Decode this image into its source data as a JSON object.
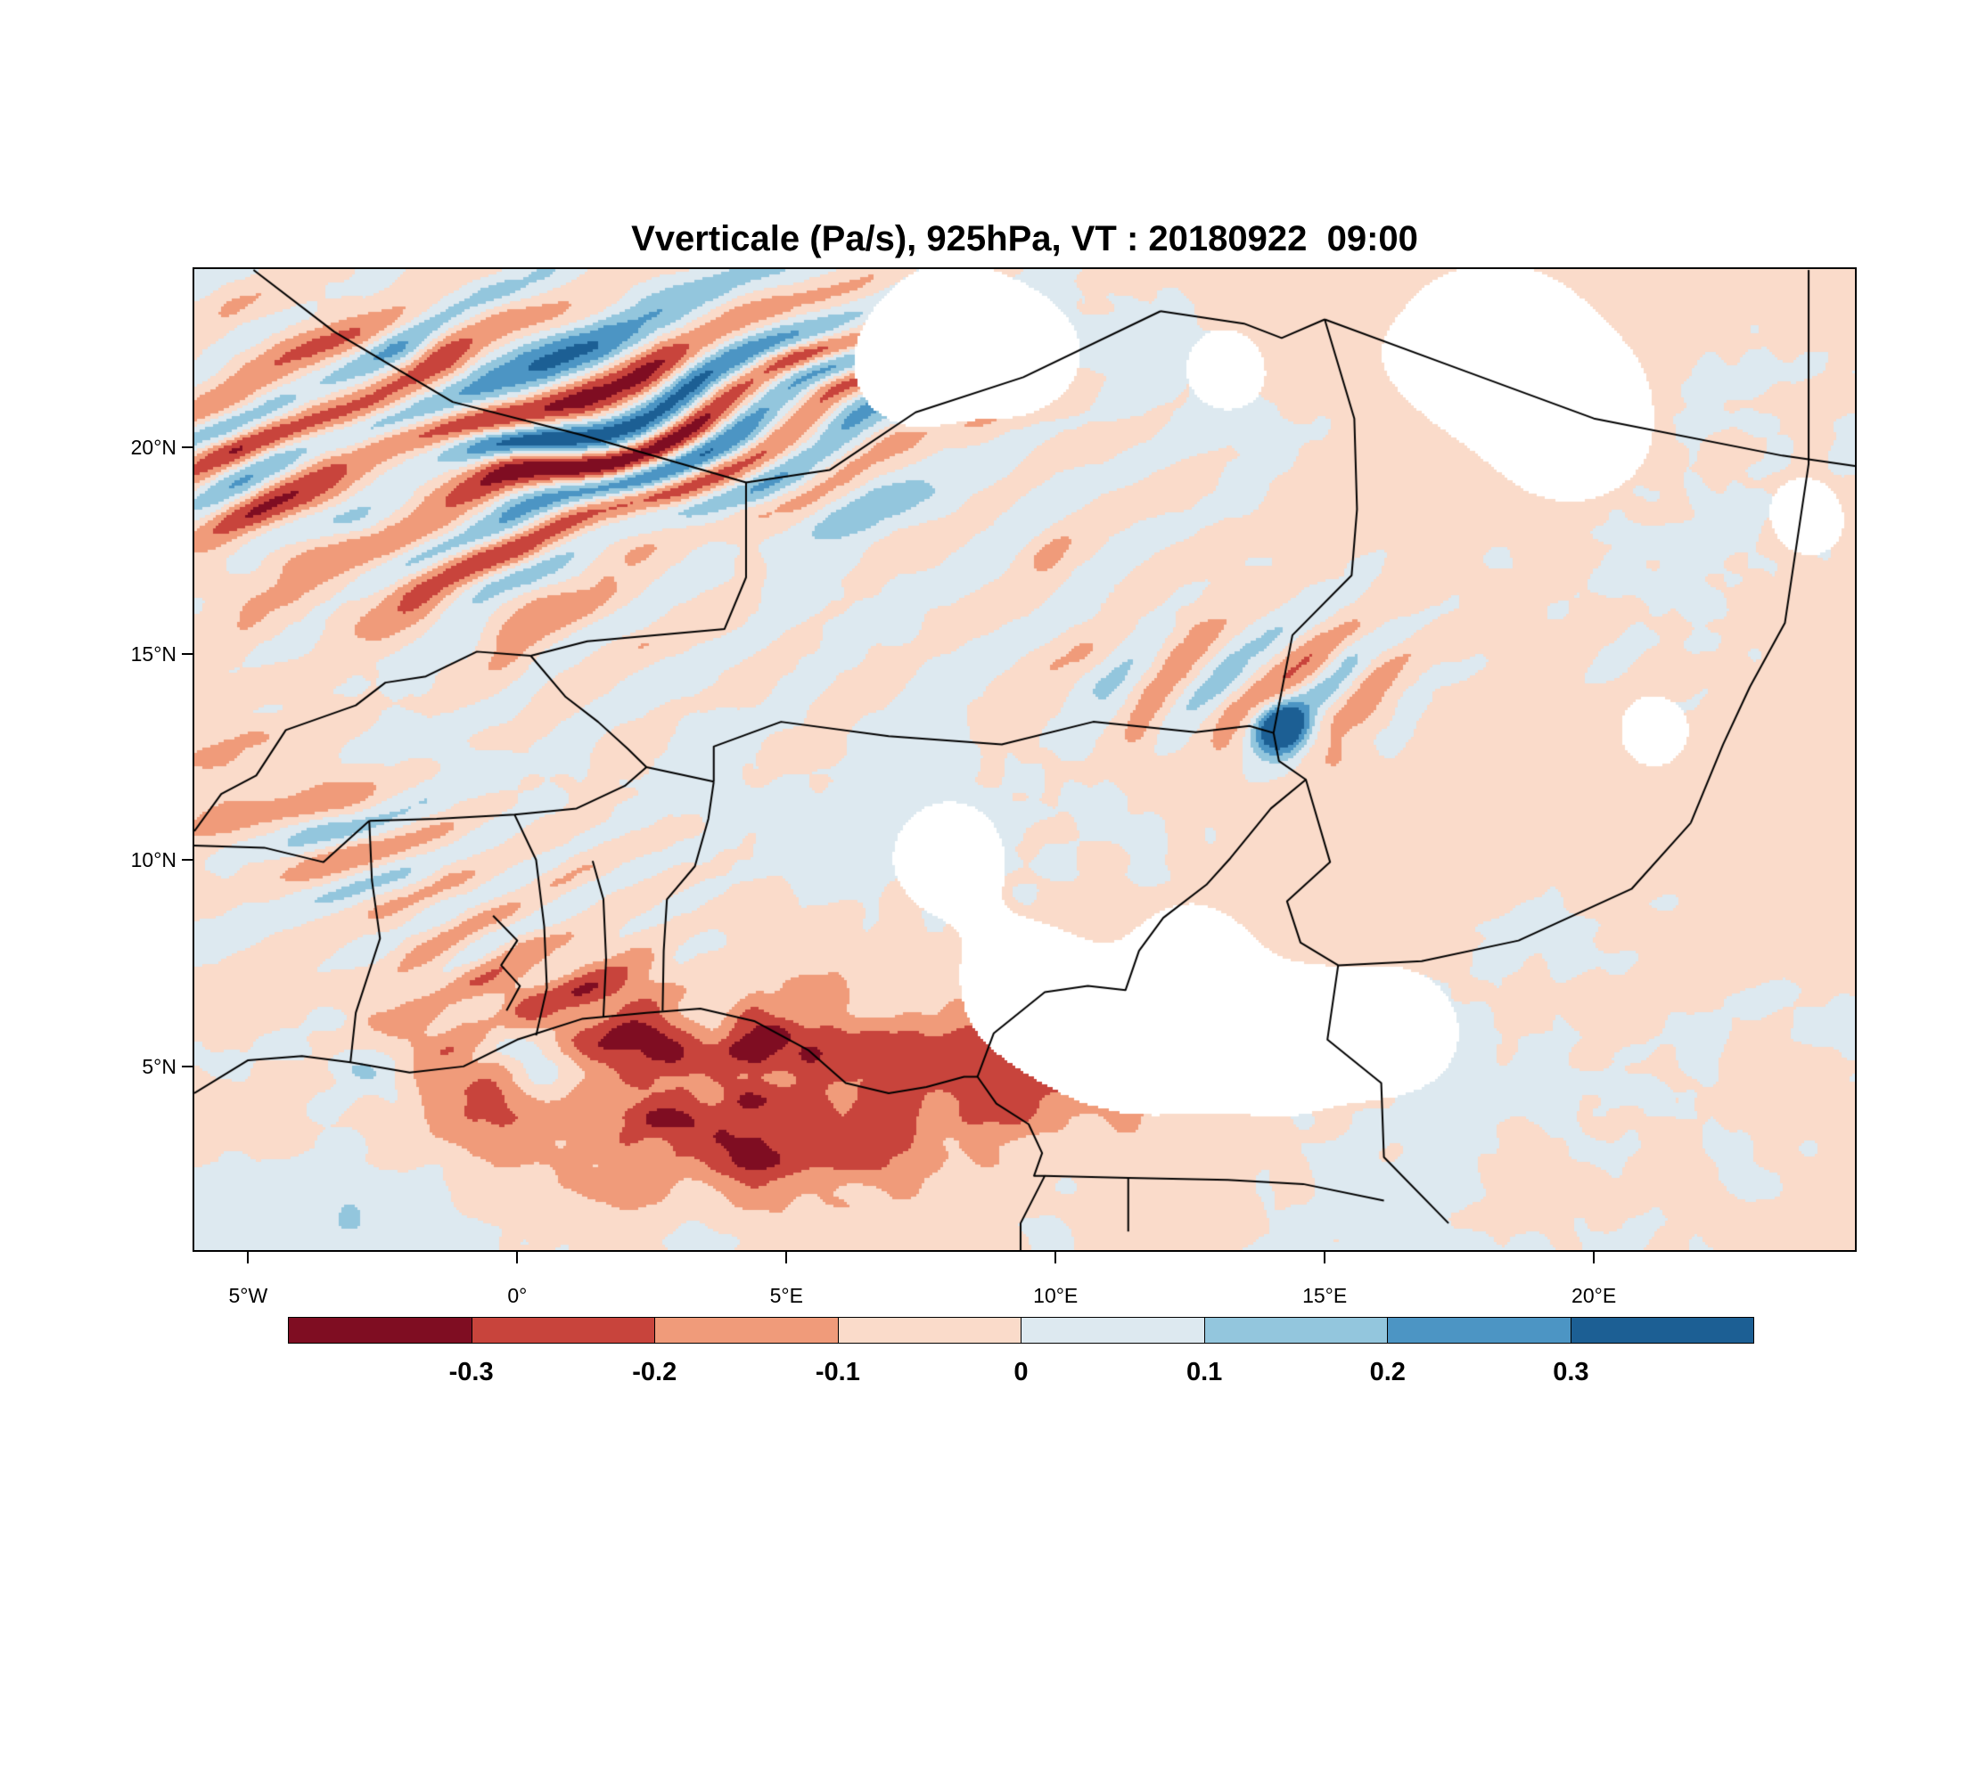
{
  "chart_data": {
    "type": "heatmap",
    "title": "Vverticale (Pa/s), 925hPa, VT : 20180922  09:00",
    "variable": "Vverticale",
    "units": "Pa/s",
    "pressure_level": "925hPa",
    "valid_time": "20180922  09:00",
    "x_axis": {
      "tick_labels": [
        "5°W",
        "0°",
        "5°E",
        "10°E",
        "15°E",
        "20°E"
      ],
      "tick_values_deg_east": [
        -5,
        0,
        5,
        10,
        15,
        20
      ],
      "range_deg_east": [
        -6.0,
        24.85
      ]
    },
    "y_axis": {
      "tick_labels": [
        "5°N",
        "10°N",
        "15°N",
        "20°N"
      ],
      "tick_values_deg_north": [
        5,
        10,
        15,
        20
      ],
      "range_deg_north": [
        0.55,
        24.32
      ]
    },
    "colorbar": {
      "orientation": "horizontal",
      "levels": [
        -0.3,
        -0.2,
        -0.1,
        0,
        0.1,
        0.2,
        0.3
      ],
      "tick_labels": [
        "-0.3",
        "-0.2",
        "-0.1",
        "0",
        "0.1",
        "0.2",
        "0.3"
      ],
      "cell_colors": [
        "#7f0d22",
        "#c8443c",
        "#f09b7a",
        "#fadbca",
        "#dde9f0",
        "#93c6dd",
        "#4c95c4",
        "#1c5f94"
      ]
    },
    "masked_color": "#ffffff",
    "border_color": "#000000",
    "grid": false
  }
}
